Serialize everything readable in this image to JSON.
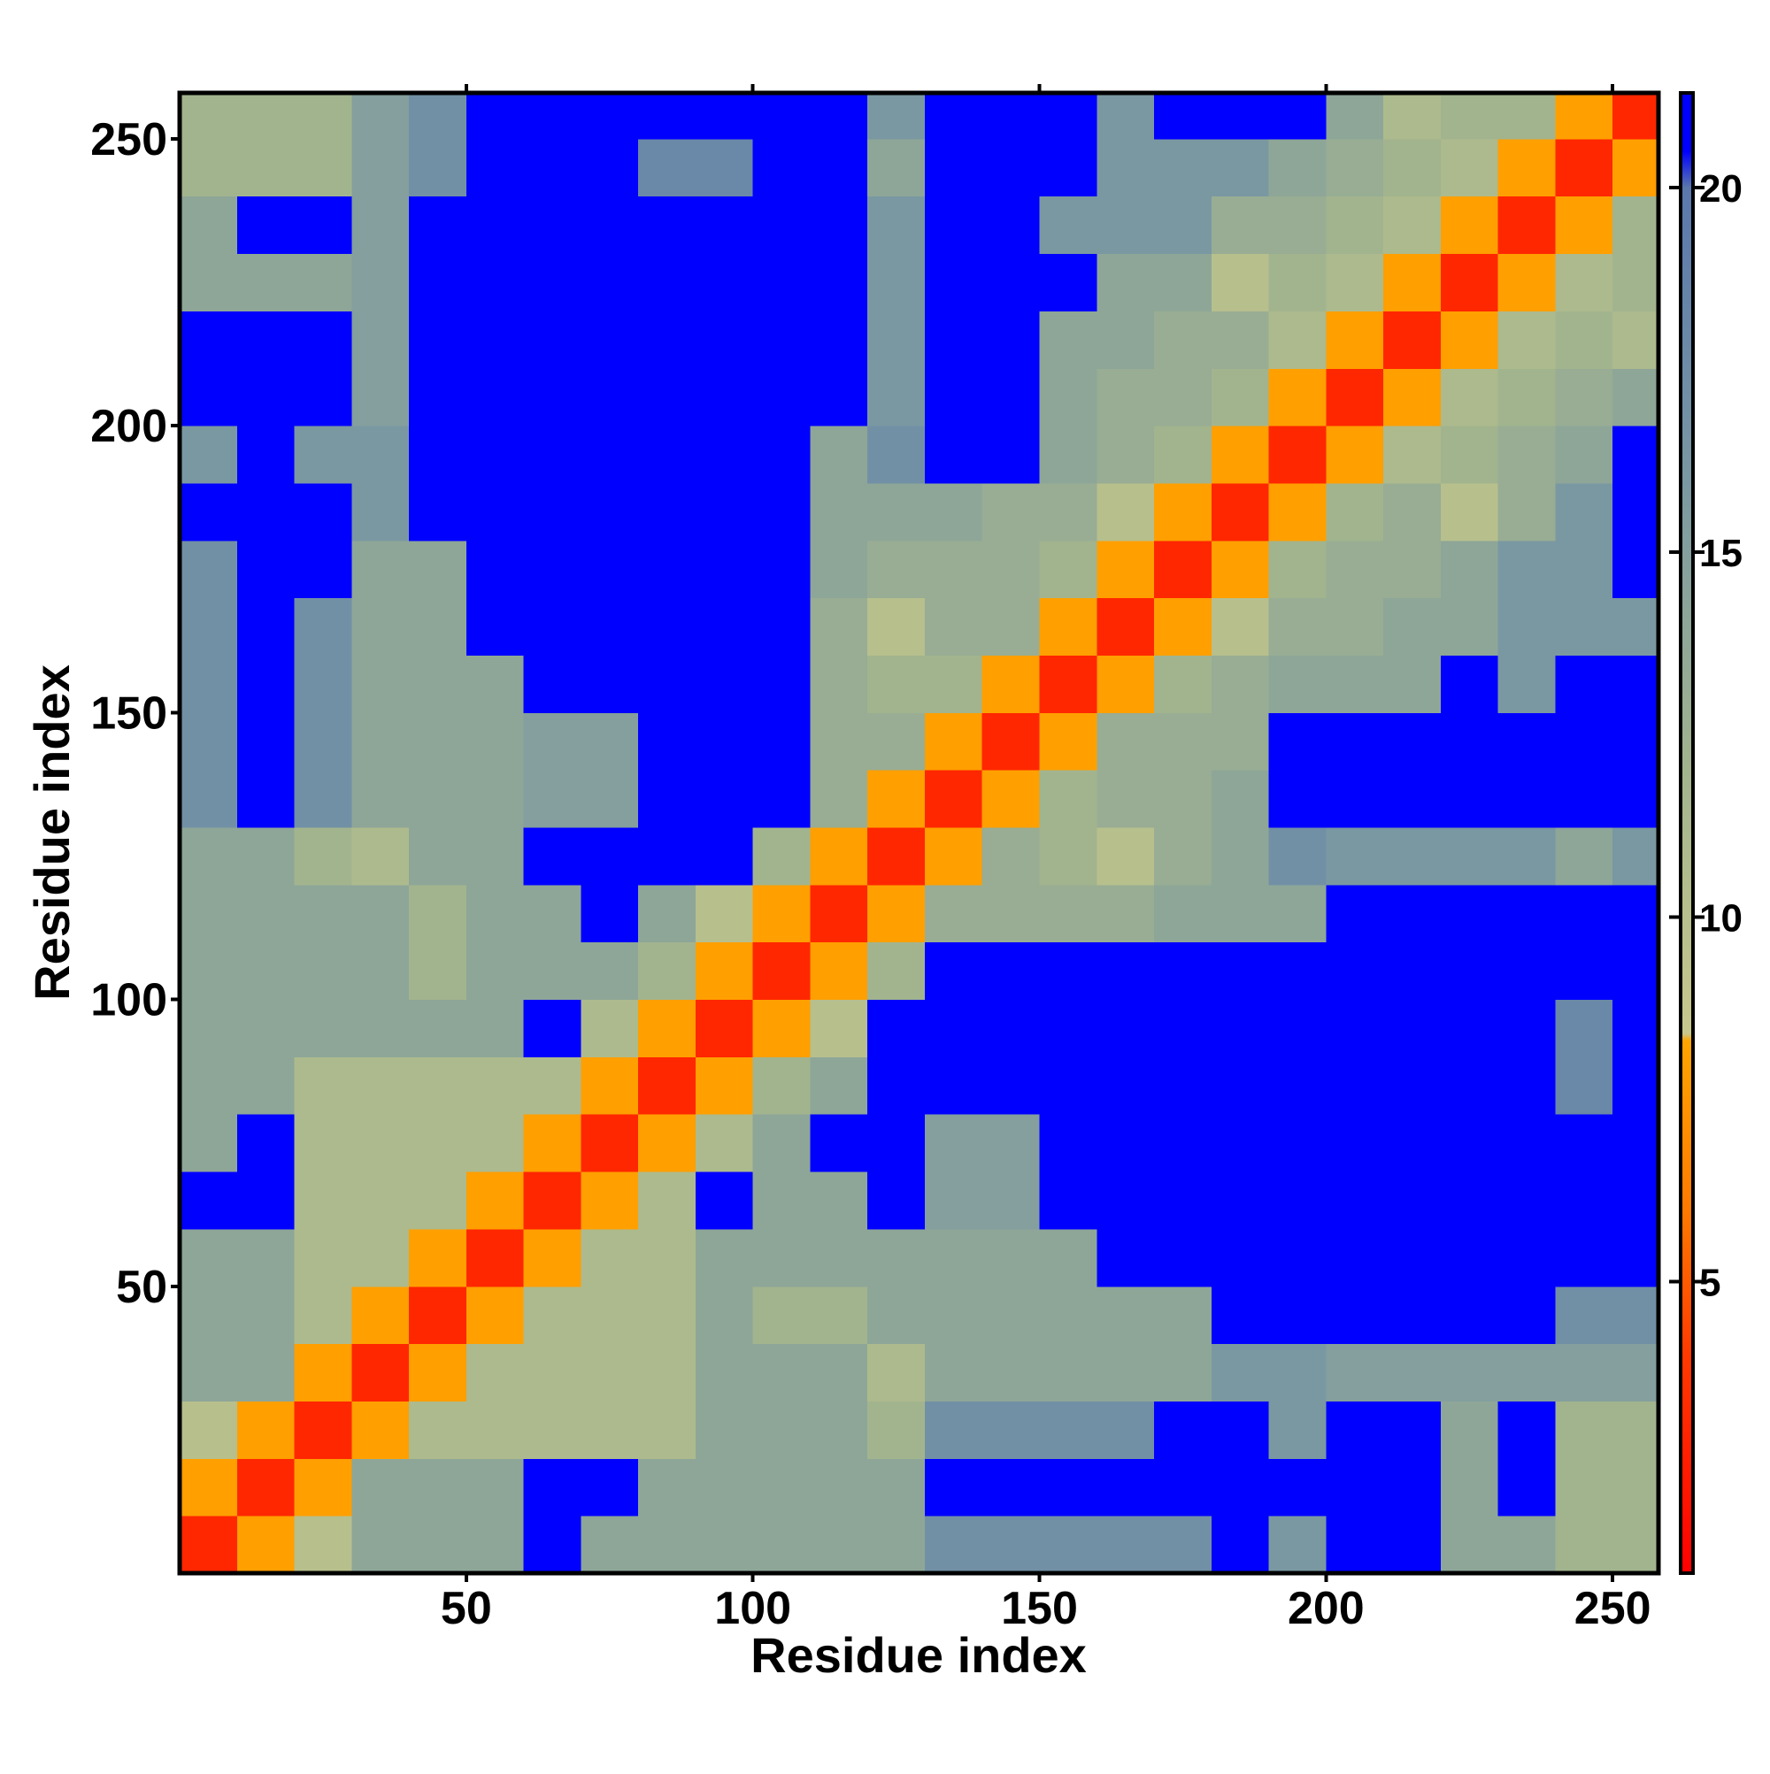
{
  "chart_data": {
    "type": "heatmap",
    "x_label": "Residue index",
    "y_label": "Residue index",
    "xbins": [
      0,
      10,
      20,
      30,
      40,
      50,
      60,
      70,
      80,
      90,
      100,
      110,
      120,
      130,
      140,
      150,
      160,
      170,
      180,
      190,
      200,
      210,
      220,
      230,
      240,
      250,
      258
    ],
    "ybins": [
      0,
      10,
      20,
      30,
      40,
      50,
      60,
      70,
      80,
      90,
      100,
      110,
      120,
      130,
      140,
      150,
      160,
      170,
      180,
      190,
      200,
      210,
      220,
      230,
      240,
      250,
      258
    ],
    "z": [
      [
        3,
        8,
        10,
        14,
        14,
        14,
        21,
        14,
        14,
        14,
        14,
        14,
        14,
        17,
        17,
        17,
        17,
        17,
        21,
        16,
        21,
        21,
        14,
        14,
        12,
        12
      ],
      [
        8,
        3,
        8,
        14,
        14,
        14,
        21,
        21,
        14,
        14,
        14,
        14,
        14,
        21,
        21,
        21,
        21,
        21,
        21,
        21,
        21,
        21,
        14,
        21,
        12,
        12
      ],
      [
        10,
        8,
        3,
        8,
        11,
        11,
        11,
        11,
        11,
        14,
        14,
        14,
        12,
        17,
        17,
        17,
        17,
        21,
        21,
        16,
        21,
        21,
        14,
        21,
        12,
        12
      ],
      [
        14,
        14,
        8,
        3,
        8,
        11,
        11,
        11,
        11,
        14,
        14,
        14,
        11,
        14,
        14,
        14,
        14,
        14,
        16,
        16,
        15,
        15,
        15,
        15,
        15,
        15
      ],
      [
        14,
        14,
        11,
        8,
        3,
        8,
        11,
        11,
        11,
        14,
        12,
        12,
        14,
        14,
        14,
        14,
        14,
        14,
        21,
        21,
        21,
        21,
        21,
        21,
        17,
        17
      ],
      [
        14,
        14,
        11,
        11,
        8,
        3,
        8,
        11,
        11,
        14,
        14,
        14,
        14,
        14,
        14,
        14,
        21,
        21,
        21,
        21,
        21,
        21,
        21,
        21,
        21,
        21
      ],
      [
        21,
        21,
        11,
        11,
        11,
        8,
        3,
        8,
        11,
        21,
        14,
        14,
        21,
        15,
        15,
        21,
        21,
        21,
        21,
        21,
        21,
        21,
        21,
        21,
        21,
        21
      ],
      [
        14,
        21,
        11,
        11,
        11,
        11,
        8,
        3,
        8,
        11,
        14,
        21,
        21,
        15,
        15,
        21,
        21,
        21,
        21,
        21,
        21,
        21,
        21,
        21,
        21,
        21
      ],
      [
        14,
        14,
        11,
        11,
        11,
        11,
        11,
        8,
        3,
        8,
        12,
        14,
        21,
        21,
        21,
        21,
        21,
        21,
        21,
        21,
        21,
        21,
        21,
        21,
        18,
        21
      ],
      [
        14,
        14,
        14,
        14,
        14,
        14,
        21,
        11,
        8,
        3,
        8,
        10,
        21,
        21,
        21,
        21,
        21,
        21,
        21,
        21,
        21,
        21,
        21,
        21,
        18,
        21
      ],
      [
        14,
        14,
        14,
        14,
        12,
        14,
        14,
        14,
        12,
        8,
        3,
        8,
        12,
        21,
        21,
        21,
        21,
        21,
        21,
        21,
        21,
        21,
        21,
        21,
        21,
        21
      ],
      [
        14,
        14,
        14,
        14,
        12,
        14,
        14,
        21,
        14,
        10,
        8,
        3,
        8,
        13,
        13,
        13,
        13,
        14,
        14,
        14,
        21,
        21,
        21,
        21,
        21,
        21
      ],
      [
        14,
        14,
        12,
        11,
        14,
        14,
        21,
        21,
        21,
        21,
        12,
        8,
        3,
        8,
        13,
        12,
        10,
        13,
        14,
        17,
        16,
        16,
        16,
        16,
        14,
        16
      ],
      [
        17,
        21,
        17,
        14,
        14,
        14,
        15,
        15,
        21,
        21,
        21,
        13,
        8,
        3,
        8,
        12,
        13,
        13,
        14,
        21,
        21,
        21,
        21,
        21,
        21,
        21
      ],
      [
        17,
        21,
        17,
        14,
        14,
        14,
        15,
        15,
        21,
        21,
        21,
        13,
        13,
        8,
        3,
        8,
        13,
        13,
        13,
        21,
        21,
        21,
        21,
        21,
        21,
        21
      ],
      [
        17,
        21,
        17,
        14,
        14,
        14,
        21,
        21,
        21,
        21,
        21,
        13,
        12,
        12,
        8,
        3,
        8,
        12,
        13,
        14,
        14,
        14,
        21,
        16,
        21,
        21
      ],
      [
        17,
        21,
        17,
        14,
        14,
        21,
        21,
        21,
        21,
        21,
        21,
        13,
        10,
        13,
        13,
        8,
        3,
        8,
        10,
        13,
        13,
        14,
        14,
        16,
        16,
        16
      ],
      [
        17,
        21,
        21,
        14,
        14,
        21,
        21,
        21,
        21,
        21,
        21,
        14,
        13,
        13,
        13,
        12,
        8,
        3,
        8,
        12,
        13,
        13,
        14,
        16,
        16,
        21
      ],
      [
        21,
        21,
        21,
        16,
        21,
        21,
        21,
        21,
        21,
        21,
        21,
        14,
        14,
        14,
        13,
        13,
        10,
        8,
        3,
        8,
        12,
        13,
        10,
        13,
        16,
        21
      ],
      [
        16,
        21,
        16,
        16,
        21,
        21,
        21,
        21,
        21,
        21,
        21,
        14,
        17,
        21,
        21,
        14,
        13,
        12,
        8,
        3,
        8,
        11,
        12,
        13,
        14,
        21
      ],
      [
        21,
        21,
        21,
        15,
        21,
        21,
        21,
        21,
        21,
        21,
        21,
        21,
        16,
        21,
        21,
        14,
        13,
        13,
        12,
        8,
        3,
        8,
        11,
        12,
        13,
        14
      ],
      [
        21,
        21,
        21,
        15,
        21,
        21,
        21,
        21,
        21,
        21,
        21,
        21,
        16,
        21,
        21,
        14,
        14,
        13,
        13,
        11,
        8,
        3,
        8,
        11,
        12,
        11
      ],
      [
        14,
        14,
        14,
        15,
        21,
        21,
        21,
        21,
        21,
        21,
        21,
        21,
        16,
        21,
        21,
        21,
        14,
        14,
        10,
        12,
        11,
        8,
        3,
        8,
        11,
        12
      ],
      [
        14,
        21,
        21,
        15,
        21,
        21,
        21,
        21,
        21,
        21,
        21,
        21,
        16,
        21,
        21,
        16,
        16,
        16,
        13,
        13,
        12,
        11,
        8,
        3,
        8,
        12
      ],
      [
        12,
        12,
        12,
        15,
        17,
        21,
        21,
        21,
        18,
        18,
        21,
        21,
        14,
        21,
        21,
        21,
        16,
        16,
        16,
        14,
        13,
        12,
        11,
        8,
        3,
        8
      ],
      [
        12,
        12,
        12,
        15,
        17,
        21,
        21,
        21,
        21,
        21,
        21,
        21,
        16,
        21,
        21,
        21,
        16,
        21,
        21,
        21,
        14,
        11,
        12,
        12,
        8,
        3
      ]
    ],
    "xlim": [
      0,
      258
    ],
    "ylim": [
      0,
      258
    ],
    "xticks": [
      50,
      100,
      150,
      200,
      250
    ],
    "yticks": [
      50,
      100,
      150,
      200,
      250
    ],
    "clim": [
      1,
      21.3
    ],
    "cticks": [
      5,
      10,
      15,
      20
    ],
    "colorscale": [
      [
        1,
        "#ff0000"
      ],
      [
        4,
        "#ff3a00"
      ],
      [
        6,
        "#ff7a00"
      ],
      [
        8.3,
        "#ffa500"
      ],
      [
        8.4,
        "#c8c88c"
      ],
      [
        12,
        "#a2b48e"
      ],
      [
        16,
        "#7a98a2"
      ],
      [
        20,
        "#5a78ac"
      ],
      [
        20.5,
        "#0000ff"
      ],
      [
        21.3,
        "#0000ff"
      ]
    ]
  }
}
